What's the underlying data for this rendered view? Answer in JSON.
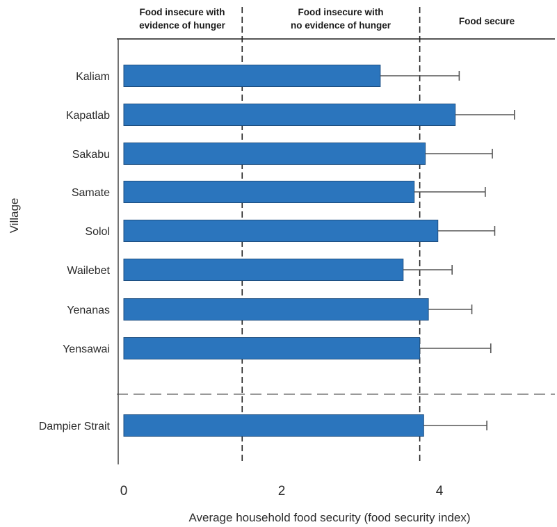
{
  "chart_data": {
    "type": "bar",
    "orientation": "horizontal",
    "categories": [
      "Kaliam",
      "Kapatlab",
      "Sakabu",
      "Samate",
      "Solol",
      "Wailebet",
      "Yenanas",
      "Yensawai",
      "Dampier Strait"
    ],
    "values": [
      3.25,
      4.2,
      3.82,
      3.68,
      3.98,
      3.54,
      3.86,
      3.75,
      3.8
    ],
    "errors": [
      1.0,
      0.75,
      0.85,
      0.9,
      0.72,
      0.62,
      0.55,
      0.9,
      0.8
    ],
    "xlabel": "Average household food security (food security index)",
    "ylabel": "Village",
    "xlim": [
      0,
      5.5
    ],
    "xticks": [
      0,
      2,
      4
    ],
    "thresholds": [
      1.5,
      3.75
    ],
    "zones": [
      {
        "label_lines": [
          "Food insecure with",
          "evidence of hunger"
        ]
      },
      {
        "label_lines": [
          "Food insecure with",
          "no evidence of hunger"
        ]
      },
      {
        "label_lines": [
          "Food secure"
        ]
      }
    ],
    "summary_separator_after_index": 7,
    "bar_color": "#2b75bd",
    "grid": false,
    "legend": "none"
  }
}
